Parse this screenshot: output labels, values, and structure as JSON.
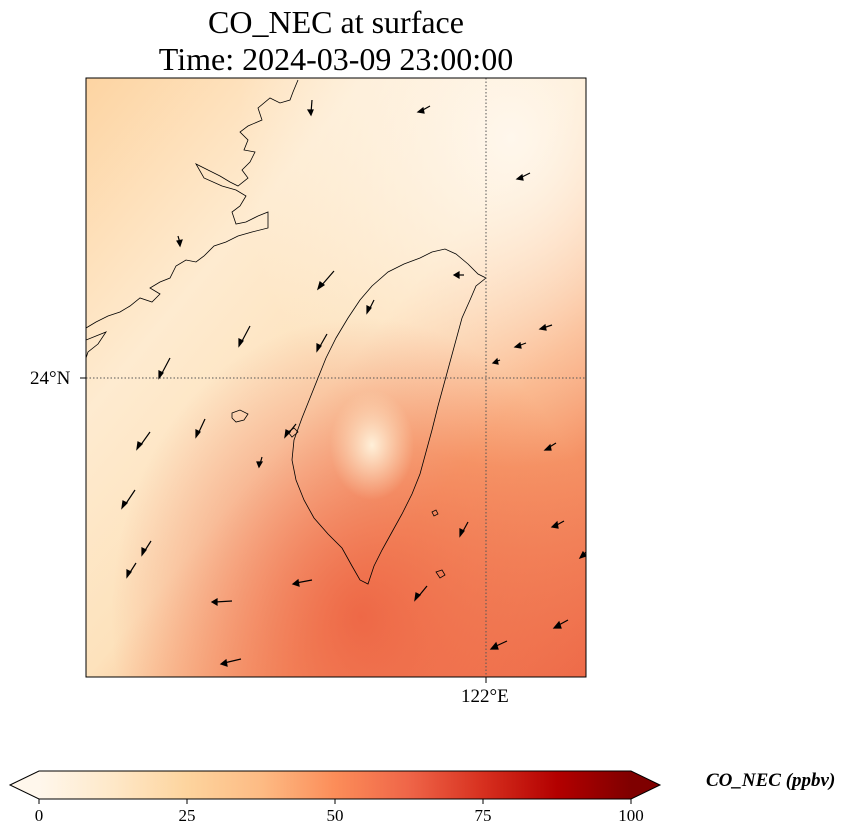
{
  "title": {
    "line1": "CO_NEC at surface",
    "line2": "Time: 2024-03-09 23:00:00"
  },
  "map": {
    "variable": "CO_NEC",
    "level": "surface",
    "lat_tick_label": "24°N",
    "lon_tick_label": "122°E",
    "gridlines": "dotted",
    "features": [
      "coastline",
      "wind-vectors",
      "shaded-field"
    ]
  },
  "colorbar": {
    "label": "CO_NEC (ppbv)",
    "colormap": "OrRd",
    "ticks": [
      "0",
      "25",
      "50",
      "75",
      "100"
    ],
    "range": [
      0,
      100
    ],
    "extend": "both",
    "colors": [
      "#fff7ec",
      "#fee8c8",
      "#fdd49e",
      "#fdbb84",
      "#fc8d59",
      "#ef6548",
      "#d7301f",
      "#b30000",
      "#7f0000"
    ]
  }
}
